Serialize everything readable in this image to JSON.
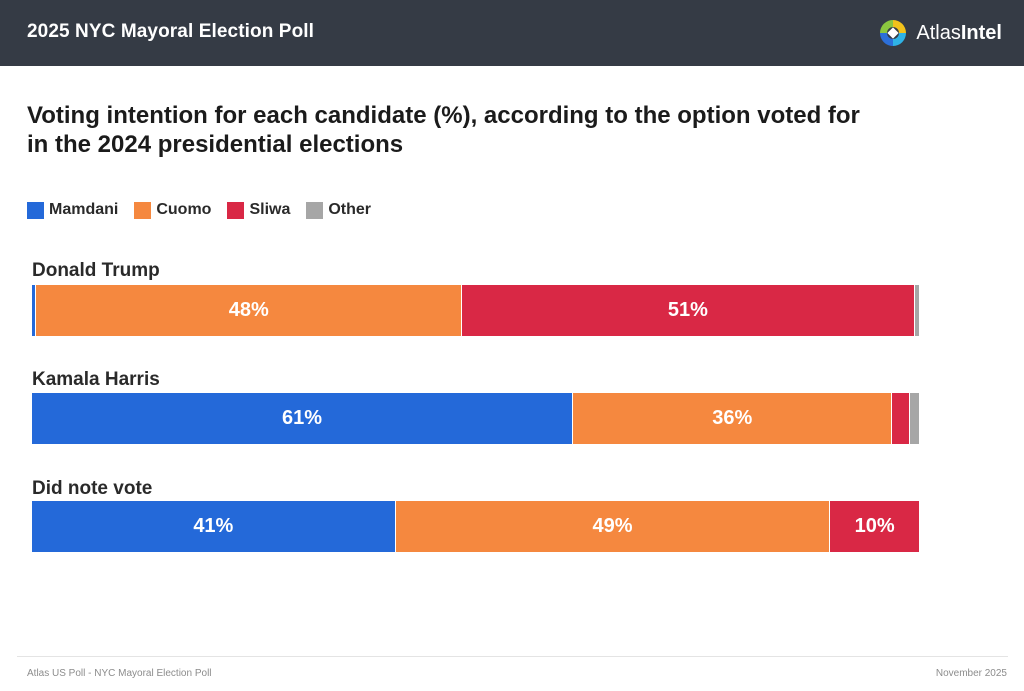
{
  "header": {
    "title": "2025 NYC Mayoral Election Poll",
    "brand_prefix": "Atlas",
    "brand_suffix": "Intel"
  },
  "chart_data": {
    "type": "bar",
    "orientation": "horizontal",
    "stacked": true,
    "title": "Voting intention for each candidate (%), according to the option voted for in the 2024 presidential elections",
    "xlim": [
      0,
      100
    ],
    "legend_position": "top-left",
    "categories": [
      "Donald Trump",
      "Kamala Harris",
      "Did note vote"
    ],
    "series": [
      {
        "name": "Mamdani",
        "color": "#2469d9",
        "values": [
          0.5,
          61,
          41
        ],
        "labels": [
          "",
          "61%",
          "41%"
        ]
      },
      {
        "name": "Cuomo",
        "color": "#f5883f",
        "values": [
          48,
          36,
          49
        ],
        "labels": [
          "48%",
          "36%",
          "49%"
        ]
      },
      {
        "name": "Sliwa",
        "color": "#d92845",
        "values": [
          51,
          2,
          10
        ],
        "labels": [
          "51%",
          "",
          "10%"
        ]
      },
      {
        "name": "Other",
        "color": "#a6a6a6",
        "values": [
          0.5,
          1,
          0
        ],
        "labels": [
          "",
          "",
          ""
        ]
      }
    ]
  },
  "footer": {
    "left": "Atlas US Poll - NYC Mayoral Election Poll",
    "right": "November 2025"
  }
}
